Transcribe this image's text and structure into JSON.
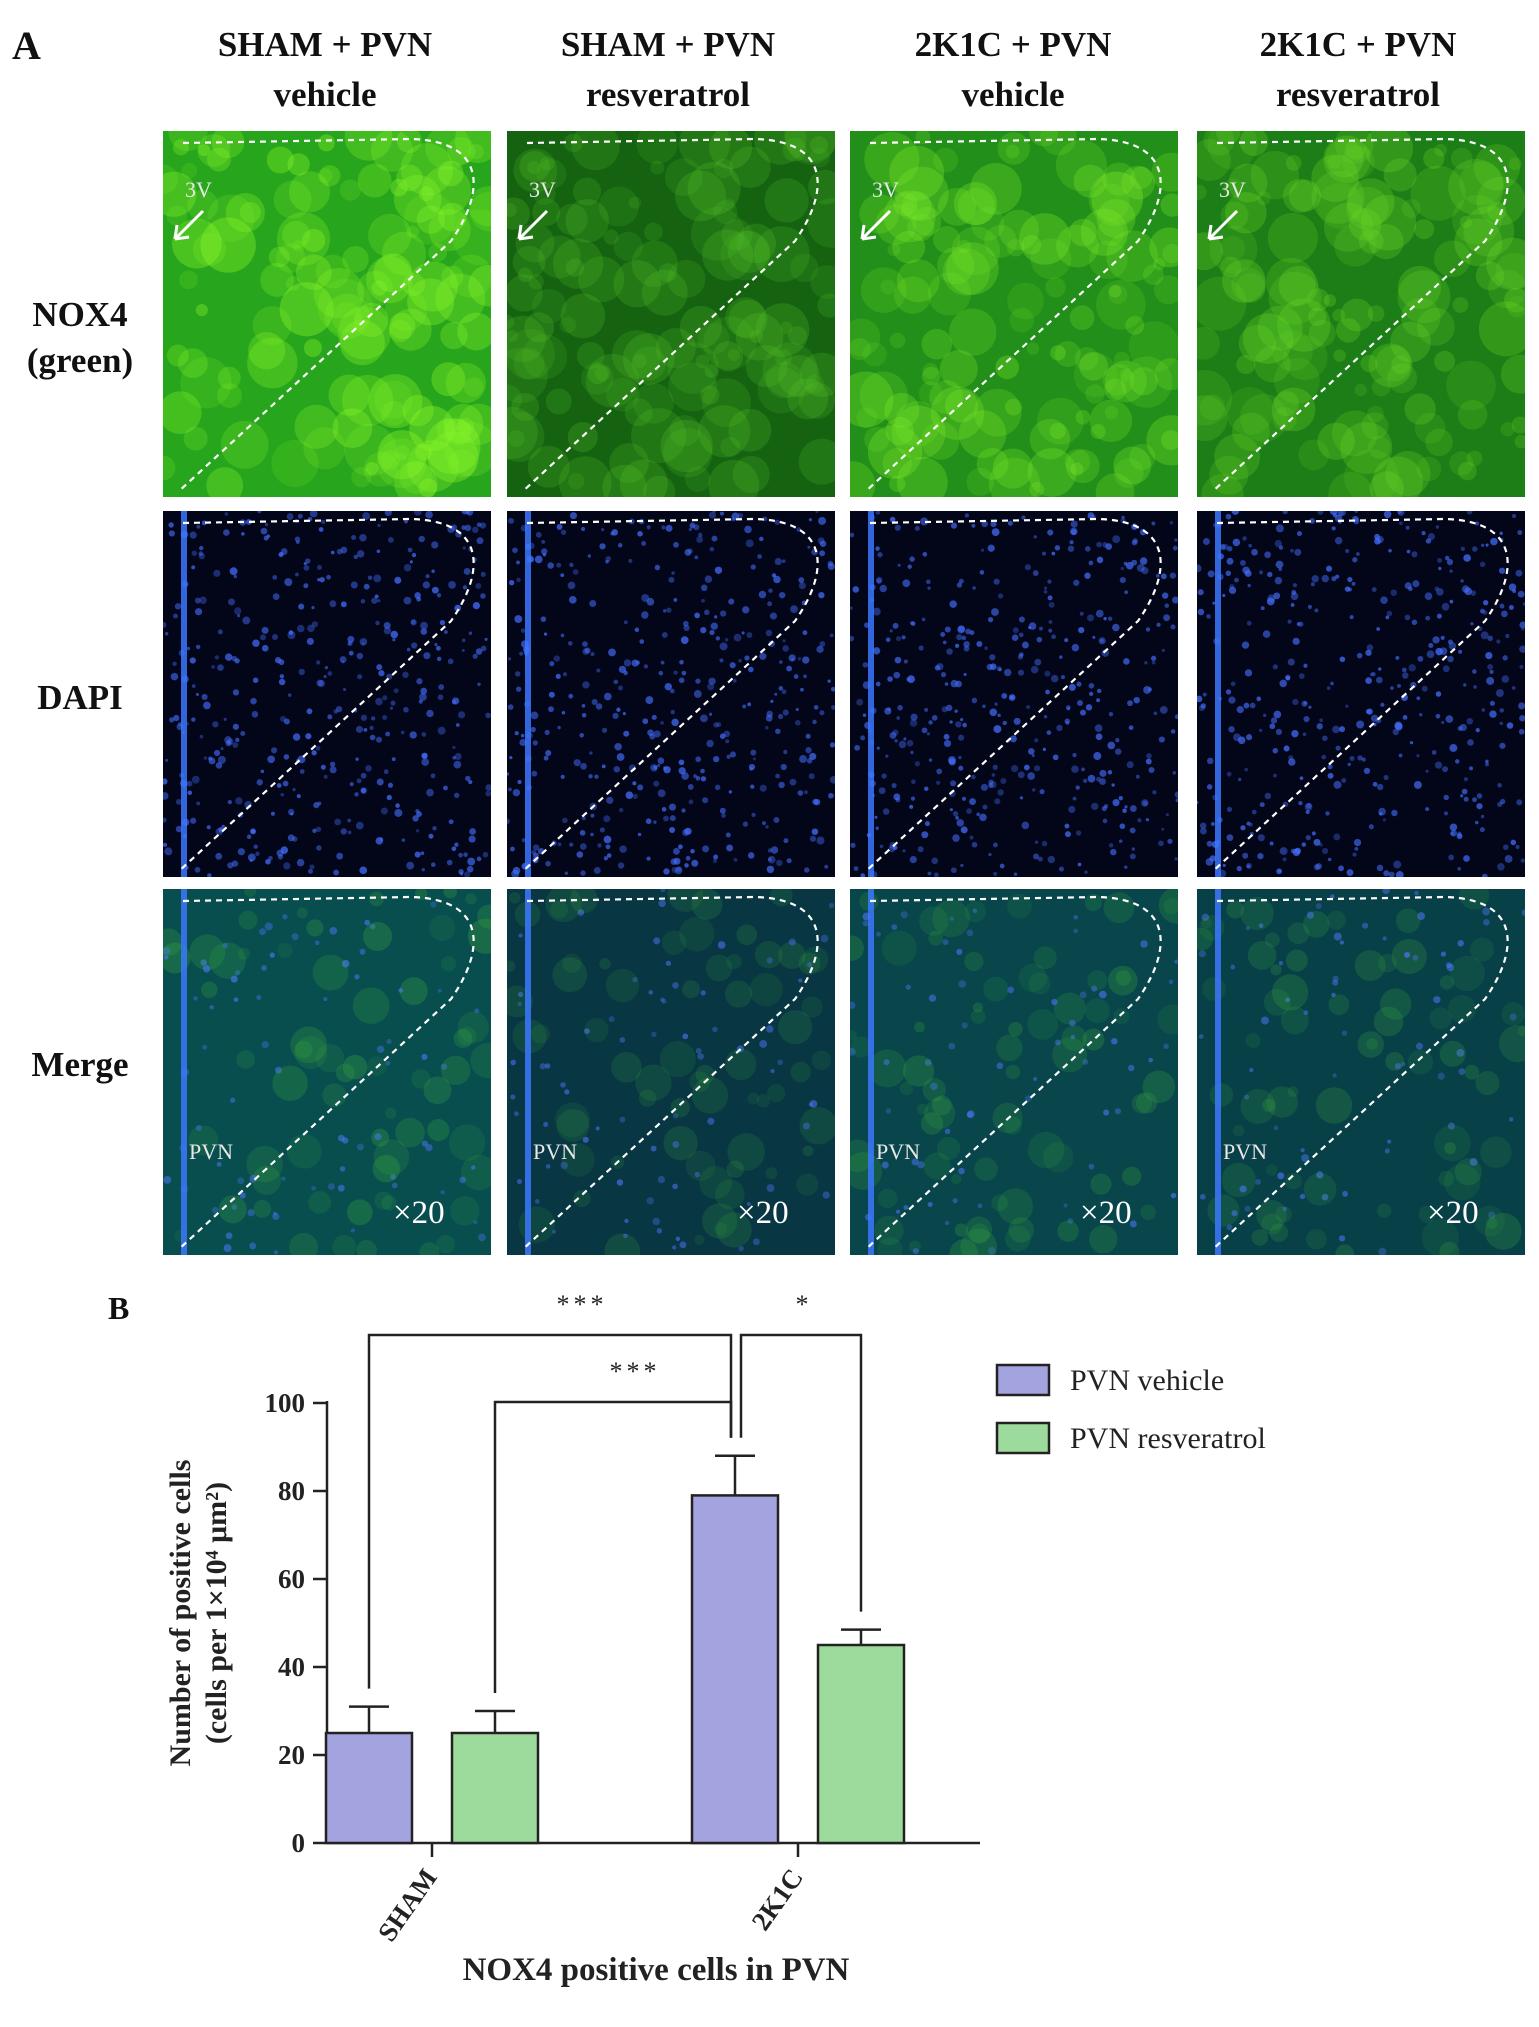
{
  "panel_a": {
    "letter": "A",
    "columns": [
      {
        "line1": "SHAM + PVN",
        "line2": "vehicle"
      },
      {
        "line1": "SHAM + PVN",
        "line2": "resveratrol"
      },
      {
        "line1": "2K1C + PVN",
        "line2": "vehicle"
      },
      {
        "line1": "2K1C + PVN",
        "line2": "resveratrol"
      }
    ],
    "rows": [
      {
        "line1": "NOX4",
        "line2": "(green)"
      },
      {
        "line1": "DAPI",
        "line2": ""
      },
      {
        "line1": "Merge",
        "line2": ""
      }
    ],
    "ventricle_label": "3V",
    "region_label": "PVN",
    "magnification": "×20",
    "colors": {
      "green": "#2fc42a",
      "blue": "#2a55d8"
    }
  },
  "panel_b": {
    "letter": "B",
    "chart_data": {
      "type": "bar",
      "title": "NOX4 positive cells in PVN",
      "ylabel_line1": "Number of positive cells",
      "ylabel_line2": "(cells per 1×10⁴ μm²)",
      "xlabel": "",
      "categories": [
        "SHAM",
        "2K1C"
      ],
      "ylim": [
        0,
        100
      ],
      "yticks": [
        0,
        20,
        40,
        60,
        80,
        100
      ],
      "series": [
        {
          "name": "PVN vehicle",
          "color": "#a3a3e0",
          "values": [
            25,
            79
          ],
          "errors": [
            6,
            9
          ]
        },
        {
          "name": "PVN resveratrol",
          "color": "#9ddb9d",
          "values": [
            25,
            45
          ],
          "errors": [
            5,
            3.5
          ]
        }
      ],
      "significance": [
        {
          "label": "***",
          "from": "SHAM|PVN vehicle",
          "to": "2K1C|PVN vehicle"
        },
        {
          "label": "***",
          "from": "SHAM|PVN resveratrol",
          "to": "2K1C|PVN vehicle"
        },
        {
          "label": "*",
          "from": "2K1C|PVN vehicle",
          "to": "2K1C|PVN resveratrol"
        }
      ],
      "legend_position": "top-right"
    }
  }
}
